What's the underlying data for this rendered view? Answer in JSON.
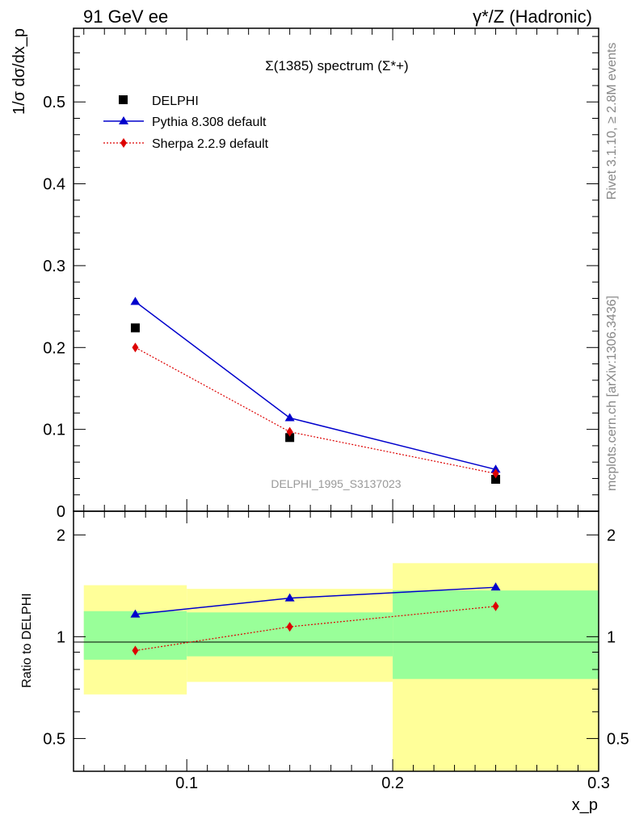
{
  "header": {
    "left": "91 GeV ee",
    "right_main": "γ*/Z (Hadronic)"
  },
  "side_text": {
    "upper": "Rivet 3.1.10, ≥ 2.8M events",
    "lower": "mcplots.cern.ch [arXiv:1306.3436]"
  },
  "colors": {
    "data": "#000000",
    "pythia": "#0000cc",
    "sherpa": "#dd0000",
    "band_inner": "#99ff99",
    "band_outer": "#ffff99"
  },
  "chart_data": [
    {
      "type": "scatter",
      "title": "Σ(1385) spectrum (Σ*+)",
      "ylabel": "1/σ dσ/dx_p",
      "watermark": "DELPHI_1995_S3137023",
      "xlim": [
        0.045,
        0.3
      ],
      "ylim": [
        0,
        0.59
      ],
      "yticks": [
        0.1,
        0.2,
        0.3,
        0.4,
        0.5
      ],
      "ytick_labels": [
        "0.1",
        "0.2",
        "0.3",
        "0.4",
        "0.5"
      ],
      "y_zero_label": "0",
      "legend": [
        {
          "name": "DELPHI",
          "marker": "square"
        },
        {
          "name": "Pythia 8.308 default",
          "marker": "triangle"
        },
        {
          "name": "Sherpa 2.2.9 default",
          "marker": "diamond"
        }
      ],
      "x": [
        0.075,
        0.15,
        0.25
      ],
      "series": [
        {
          "name": "DELPHI",
          "values": [
            0.224,
            0.09,
            0.039
          ]
        },
        {
          "name": "Pythia 8.308 default",
          "values": [
            0.256,
            0.114,
            0.051
          ]
        },
        {
          "name": "Sherpa 2.2.9 default",
          "values": [
            0.2,
            0.097,
            0.046
          ]
        }
      ]
    },
    {
      "type": "line",
      "ylabel": "Ratio to DELPHI",
      "xlabel": "x_p",
      "log_y": true,
      "xlim": [
        0.045,
        0.3
      ],
      "ylim": [
        0.4,
        2.35
      ],
      "xticks": [
        0.1,
        0.2,
        0.3
      ],
      "xtick_labels": [
        "0.1",
        "0.2",
        "0.3"
      ],
      "yticks": [
        0.5,
        1,
        2
      ],
      "ytick_labels": [
        "0.5",
        "1",
        "2"
      ],
      "bins": [
        {
          "lo": 0.05,
          "hi": 0.1,
          "inner": [
            0.855,
            1.19
          ],
          "outer": [
            0.675,
            1.42
          ]
        },
        {
          "lo": 0.1,
          "hi": 0.2,
          "inner": [
            0.875,
            1.18
          ],
          "outer": [
            0.735,
            1.385
          ]
        },
        {
          "lo": 0.2,
          "hi": 0.3,
          "inner": [
            0.75,
            1.37
          ],
          "outer": [
            0.38,
            1.65
          ]
        }
      ],
      "x": [
        0.075,
        0.15,
        0.25
      ],
      "series": [
        {
          "name": "Pythia 8.308 default",
          "values": [
            1.165,
            1.3,
            1.4
          ]
        },
        {
          "name": "Sherpa 2.2.9 default",
          "values": [
            0.91,
            1.07,
            1.23
          ]
        }
      ]
    }
  ]
}
